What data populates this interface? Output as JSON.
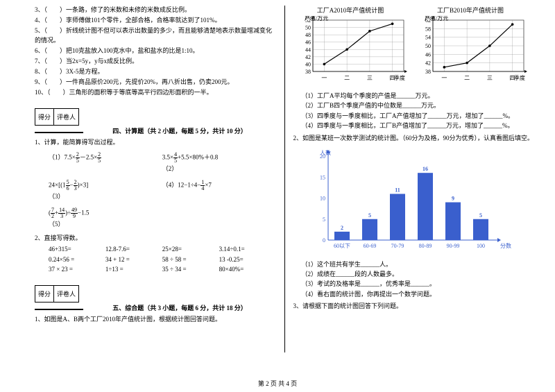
{
  "left": {
    "judgments": [
      "3、（　　）一条路，修了的米数和未修的米数成反比例。",
      "4、（　　）李师傅做101个零件，全部合格，合格率就达到了101%。",
      "5、（　　）折线统计图不但可以表示出数量的多少，而且能够清楚地表示数量增减变化的情况。",
      "6、（　　）把10克盐放入100克水中，盐和盐水的比是1:10。",
      "7、（　　）当2x=5y，y与x成反比例。",
      "8、（　　）3X-5是方程。",
      "9、（　　）一件商品原价200元，先提价20%，再八折出售，仍卖200元。",
      "10、（　　）三角形的面积等于等底等高平行四边形面积的一半。"
    ],
    "score_labels": [
      "得分",
      "评卷人"
    ],
    "section4": "四、计算题（共 2 小题，每题 5 分，共计 10 分）",
    "calc_intro": "1、计算，能简算得写出过程。",
    "calc_items": {
      "e1a": "（1）7.5×",
      "e1f1n": "2",
      "e1f1d": "5",
      "e1m": "－2.5×",
      "e1f2n": "2",
      "e1f2d": "5",
      "e2a": "（2）",
      "e2p": "3.5×",
      "e2f1n": "4",
      "e2f1d": "5",
      "e2s": "+5.5×80%＋0.8",
      "e3a": "（3）",
      "e3l": "24×",
      "e3b1": "[(1",
      "e3f1n": "5",
      "e3f1d": "6",
      "e3m": "−",
      "e3f2n": "2",
      "e3f2d": "3",
      "e3b2": ")×3]",
      "e4a": "（4）12−1÷4−",
      "e4f1n": "1",
      "e4f1d": "4",
      "e4t": "×7",
      "e5a": "（5）",
      "e5l": "(",
      "e5f1n": "7",
      "e5f1d": "2",
      "e5p": "+",
      "e5f2n": "14",
      "e5f2d": "3",
      "e5r": ")÷",
      "e5f3n": "49",
      "e5f3d": "9",
      "e5t": "−1.5"
    },
    "arith_intro": "2、直接写得数。",
    "arith": [
      "46+315=",
      "12.8-7.6=",
      "25×28=",
      "3.14÷0.1=",
      "0.24×56 =",
      "34 + 12 =",
      "58 ÷ 58 =",
      "13 -0.25=",
      "37 × 23 =",
      "1÷13 =",
      "35 ÷ 34 =",
      "80×40%="
    ],
    "section5": "五、综合题（共 3 小题，每题 6 分，共计 18 分）",
    "comp1": "1、如图是A、B两个工厂2010年产值统计图，根据统计图回答问题。"
  },
  "right": {
    "chartA": {
      "title": "工厂A2010年产值统计图",
      "ylabel": "产值/万元",
      "xlabel": "季度",
      "ylim": [
        38,
        52
      ],
      "ytick_step": 2,
      "xcats": [
        "一",
        "二",
        "三",
        "四"
      ],
      "values": [
        40,
        44,
        49,
        51
      ],
      "line_color": "#000",
      "bg": "#fff",
      "grid": "#888"
    },
    "chartB": {
      "title": "工厂B2010年产值统计图",
      "ylabel": "产值/万元",
      "xlabel": "季度",
      "ylim": [
        38,
        62
      ],
      "ytick_step": 4,
      "xcats": [
        "一",
        "二",
        "三",
        "四"
      ],
      "values": [
        40,
        42,
        50,
        60
      ],
      "line_color": "#000",
      "bg": "#fff",
      "grid": "#888"
    },
    "line_questions": [
      "（1）工厂A平均每个季度的产值是______万元。",
      "（2）工厂B四个季度产值的中位数是______万元。",
      "（3）四季度与一季度相比，工厂A产值增加了______万元，增加了______%。",
      "（4）四季度与一季度相比，工厂B产值增加了______万元，增加了______%。"
    ],
    "bar_intro": "2、如图是某班一次数学测试的统计图。（60分为及格，90分为优秀），认真看图后填空。",
    "barchart": {
      "type": "bar",
      "title": "",
      "ylabel": "人数",
      "xlabel": "分数",
      "categories": [
        "60以下",
        "60-69",
        "70-79",
        "80-89",
        "90-99",
        "100"
      ],
      "values": [
        2,
        5,
        11,
        16,
        9,
        5
      ],
      "bar_color": "#3a5fcd",
      "label_color": "#3a5fcd",
      "axis_color": "#3a5fcd",
      "ylim": [
        0,
        20
      ],
      "ytick_step": 5,
      "label_fontsize": 8,
      "bar_width": 0.55
    },
    "bar_questions": [
      "（1）这个班共有学生______人。",
      "（2）成绩在______段的人数最多。",
      "（3）考试的及格率是______，优秀率是______。",
      "（4）看右面的统计图，你再提出一个数学问题。"
    ],
    "q3": "3、请根据下面的统计图回答下列问题。"
  },
  "footer": "第 2 页 共 4 页"
}
